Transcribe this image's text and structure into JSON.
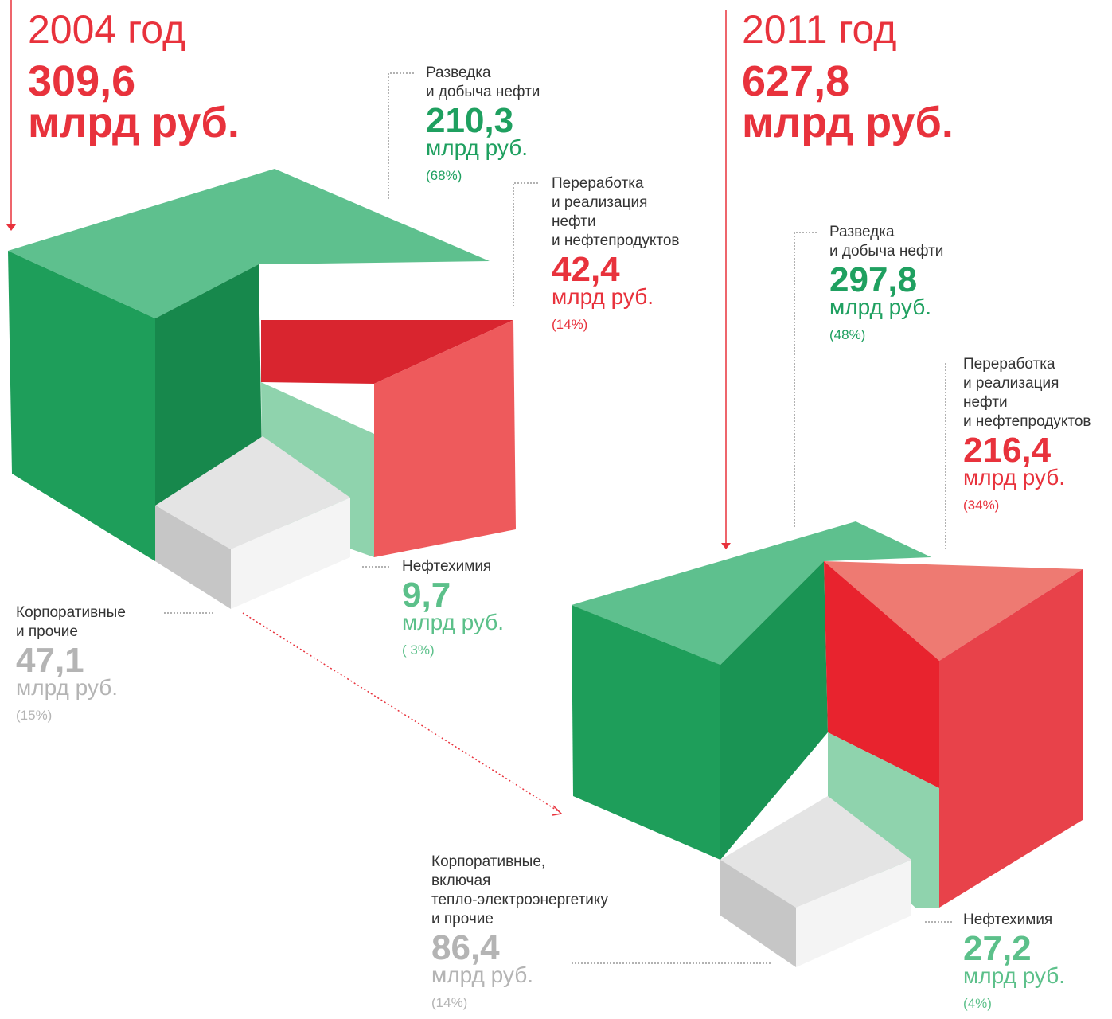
{
  "panels": [
    {
      "year": "2004 год",
      "total": "309,6",
      "total_unit": "млрд руб.",
      "segments": [
        {
          "label": [
            "Разведка",
            "и добыча нефти"
          ],
          "value": "210,3",
          "unit": "млрд руб.",
          "share": "(68%)"
        },
        {
          "label": [
            "Переработка",
            "и реализация",
            "нефти",
            "и нефтепродуктов"
          ],
          "value": "42,4",
          "unit": "млрд руб.",
          "share": "(14%)"
        },
        {
          "label": [
            "Нефтехимия"
          ],
          "value": "9,7",
          "unit": "млрд руб.",
          "share": "( 3%)"
        },
        {
          "label": [
            "Корпоративные",
            "и прочие"
          ],
          "value": "47,1",
          "unit": "млрд руб.",
          "share": "(15%)"
        }
      ]
    },
    {
      "year": "2011 год",
      "total": "627,8",
      "total_unit": "млрд руб.",
      "segments": [
        {
          "label": [
            "Разведка",
            "и добыча нефти"
          ],
          "value": "297,8",
          "unit": "млрд руб.",
          "share": "(48%)"
        },
        {
          "label": [
            "Переработка",
            "и реализация",
            "нефти",
            "и нефтепродуктов"
          ],
          "value": "216,4",
          "unit": "млрд руб.",
          "share": "(34%)"
        },
        {
          "label": [
            "Нефтехимия"
          ],
          "value": "27,2",
          "unit": "млрд руб.",
          "share": "(4%)"
        },
        {
          "label": [
            "Корпоративные,",
            "включая",
            "тепло-электроэнергетику",
            "и прочие"
          ],
          "value": "86,4",
          "unit": "млрд руб.",
          "share": "(14%)"
        }
      ]
    }
  ]
}
